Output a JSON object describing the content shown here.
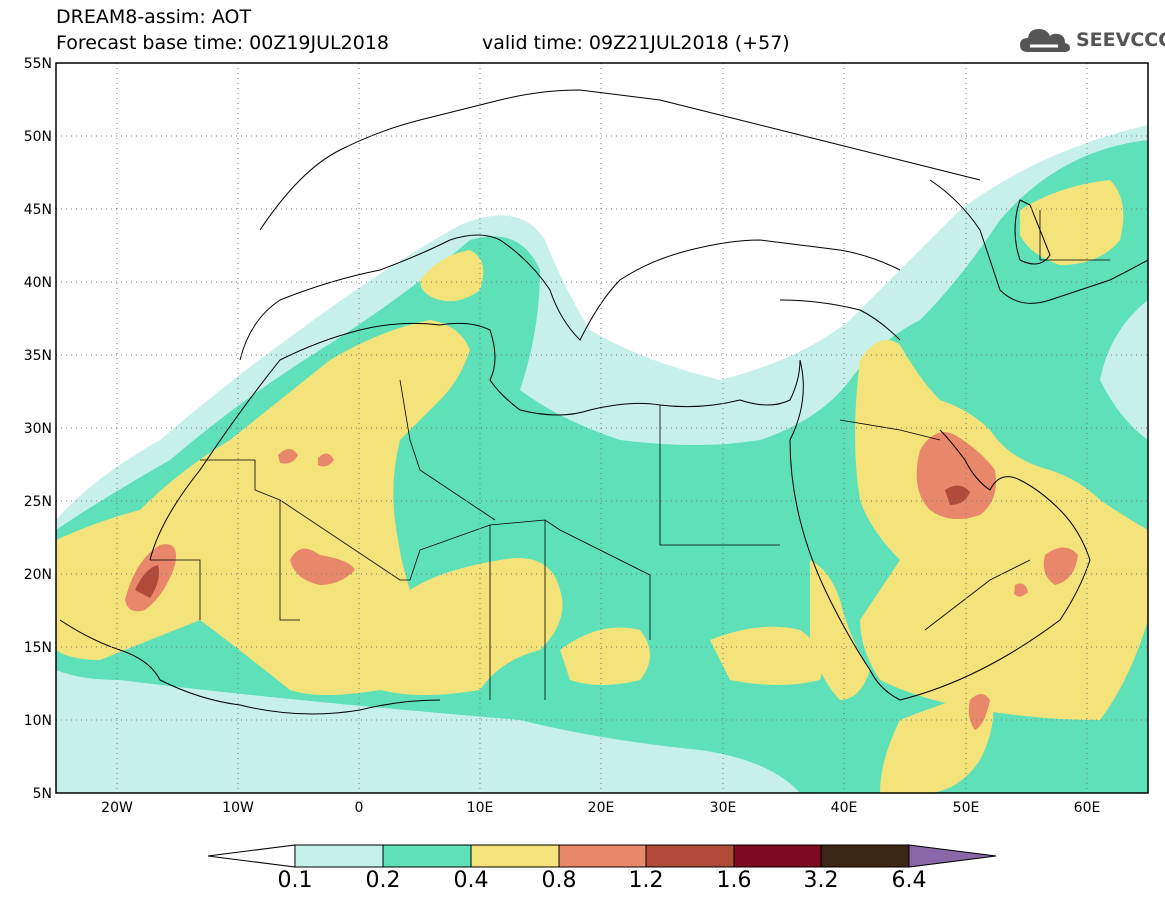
{
  "header": {
    "title": "DREAM8-assim: AOT",
    "base_time": "Forecast base time: 00Z19JUL2018",
    "valid_time": "valid time: 09Z21JUL2018 (+57)",
    "logo_text": "SEEVCCC"
  },
  "axes": {
    "lat_labels": [
      "55N",
      "50N",
      "45N",
      "40N",
      "35N",
      "30N",
      "25N",
      "20N",
      "15N",
      "10N",
      "5N"
    ],
    "lon_labels": [
      "20W",
      "10W",
      "0",
      "10E",
      "20E",
      "30E",
      "40E",
      "50E",
      "60E"
    ]
  },
  "colorbar": {
    "levels": [
      "0.1",
      "0.2",
      "0.4",
      "0.8",
      "1.2",
      "1.6",
      "3.2",
      "6.4"
    ],
    "colors": [
      "#ffffff",
      "#c8f0ea",
      "#5ee0b9",
      "#f4e27a",
      "#e8876a",
      "#b24a3a",
      "#7d0a20",
      "#3a2614",
      "#8a68a8"
    ]
  },
  "colors": {
    "c1": "#c8f0ea",
    "c2": "#5ee0b9",
    "c3": "#f4e27a",
    "c4": "#e8876a",
    "c5": "#b24a3a"
  }
}
